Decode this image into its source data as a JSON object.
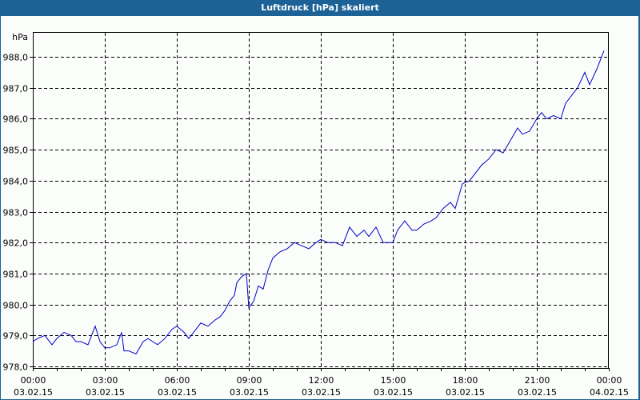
{
  "window": {
    "title": "Luftdruck [hPa] skaliert"
  },
  "chart_data": {
    "type": "line",
    "title": "Luftdruck [hPa] skaliert",
    "xlabel": "",
    "ylabel": "hPa",
    "ylim": [
      978.0,
      988.0
    ],
    "grid": true,
    "legend": null,
    "y_ticks": [
      "978,0",
      "979,0",
      "980,0",
      "981,0",
      "982,0",
      "983,0",
      "984,0",
      "985,0",
      "986,0",
      "987,0",
      "988,0"
    ],
    "x_ticks": [
      {
        "time": "00:00",
        "date": "03.02.15"
      },
      {
        "time": "03:00",
        "date": "03.02.15"
      },
      {
        "time": "06:00",
        "date": "03.02.15"
      },
      {
        "time": "09:00",
        "date": "03.02.15"
      },
      {
        "time": "12:00",
        "date": "03.02.15"
      },
      {
        "time": "15:00",
        "date": "03.02.15"
      },
      {
        "time": "18:00",
        "date": "03.02.15"
      },
      {
        "time": "21:00",
        "date": "03.02.15"
      },
      {
        "time": "00:00",
        "date": "04.02.15"
      }
    ],
    "series": [
      {
        "name": "Luftdruck",
        "color": "#0000c8",
        "x_hours": [
          0.0,
          0.2,
          0.5,
          0.8,
          1.0,
          1.3,
          1.6,
          1.8,
          2.0,
          2.3,
          2.6,
          2.8,
          3.0,
          3.2,
          3.5,
          3.7,
          3.8,
          4.0,
          4.3,
          4.6,
          4.8,
          5.0,
          5.2,
          5.5,
          5.8,
          6.0,
          6.3,
          6.5,
          6.8,
          7.0,
          7.3,
          7.6,
          7.8,
          8.0,
          8.2,
          8.4,
          8.5,
          8.7,
          8.9,
          9.0,
          9.2,
          9.4,
          9.6,
          9.8,
          10.0,
          10.3,
          10.6,
          10.9,
          11.2,
          11.5,
          11.8,
          12.0,
          12.3,
          12.6,
          12.9,
          13.2,
          13.5,
          13.8,
          14.0,
          14.3,
          14.6,
          14.8,
          15.0,
          15.2,
          15.5,
          15.8,
          16.0,
          16.3,
          16.6,
          16.8,
          17.1,
          17.4,
          17.6,
          17.9,
          18.2,
          18.4,
          18.7,
          19.0,
          19.3,
          19.6,
          19.9,
          20.2,
          20.4,
          20.7,
          21.0,
          21.2,
          21.4,
          21.7,
          22.0,
          22.2,
          22.5,
          22.7,
          23.0,
          23.2,
          23.5,
          23.8
        ],
        "values": [
          978.8,
          978.9,
          979.0,
          978.7,
          978.9,
          979.1,
          979.0,
          978.8,
          978.8,
          978.7,
          979.3,
          978.8,
          978.6,
          978.6,
          978.7,
          979.1,
          978.5,
          978.5,
          978.4,
          978.8,
          978.9,
          978.8,
          978.7,
          978.9,
          979.2,
          979.3,
          979.1,
          978.9,
          979.2,
          979.4,
          979.3,
          979.5,
          979.6,
          979.8,
          980.1,
          980.3,
          980.7,
          980.9,
          981.0,
          979.9,
          980.1,
          980.6,
          980.5,
          981.1,
          981.5,
          981.7,
          981.8,
          982.0,
          981.9,
          981.8,
          982.0,
          982.1,
          982.0,
          982.0,
          981.9,
          982.5,
          982.2,
          982.4,
          982.2,
          982.5,
          982.0,
          982.0,
          982.0,
          982.4,
          982.7,
          982.4,
          982.4,
          982.6,
          982.7,
          982.8,
          983.1,
          983.3,
          983.1,
          983.9,
          984.0,
          984.2,
          984.5,
          984.7,
          985.0,
          984.9,
          985.3,
          985.7,
          985.5,
          985.6,
          986.0,
          986.2,
          986.0,
          986.1,
          986.0,
          986.5,
          986.8,
          987.0,
          987.5,
          987.1,
          987.6,
          988.2
        ]
      }
    ]
  }
}
